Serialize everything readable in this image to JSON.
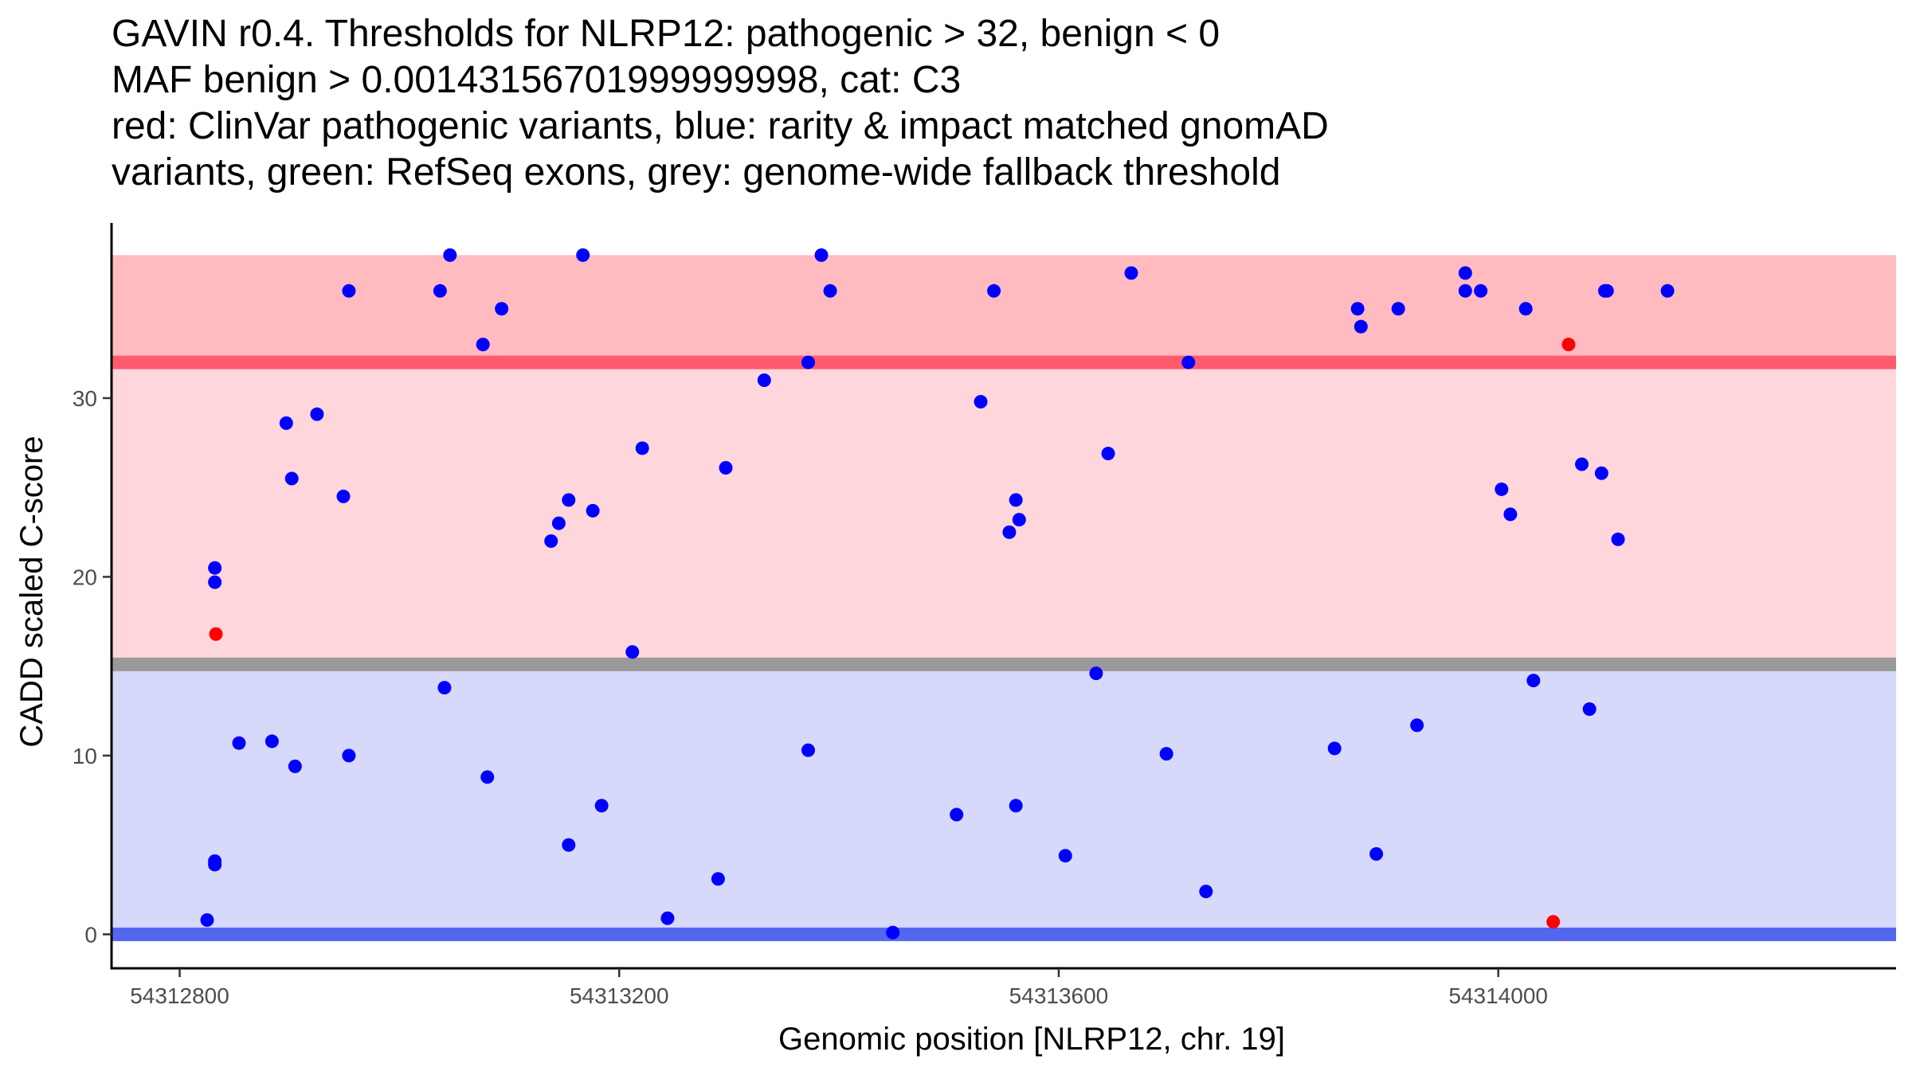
{
  "chart_data": {
    "type": "scatter",
    "title_lines": [
      "GAVIN r0.4. Thresholds for NLRP12: pathogenic > 32, benign < 0",
      "MAF benign > 0.00143156701999999998, cat: C3",
      "red: ClinVar pathogenic variants, blue: rarity & impact matched gnomAD",
      "variants, green: RefSeq exons, grey: genome-wide fallback threshold"
    ],
    "xlabel": "Genomic position [NLRP12, chr. 19]",
    "ylabel": "CADD scaled C-score",
    "xlim": [
      54312738,
      54314362
    ],
    "ylim": [
      -1.9,
      39.8
    ],
    "x_ticks": [
      54312800,
      54313200,
      54313600,
      54314000
    ],
    "x_tick_labels": [
      "54312800",
      "54313200",
      "54313600",
      "54314000"
    ],
    "y_ticks": [
      0,
      10,
      20,
      30
    ],
    "y_tick_labels": [
      "0",
      "10",
      "20",
      "30"
    ],
    "grid": false,
    "bands": [
      {
        "name": "pathogenic-band",
        "y0": 32,
        "y1": 38,
        "color": "#ffbbc0"
      },
      {
        "name": "mid-band",
        "y0": 15.1,
        "y1": 32,
        "color": "#ffd6dc"
      },
      {
        "name": "benign-band",
        "y0": 0,
        "y1": 15.1,
        "color": "#d7d9fa"
      }
    ],
    "threshold_lines": [
      {
        "name": "pathogenic-threshold-line",
        "y": 32,
        "color": "#ff5a6e"
      },
      {
        "name": "fallback-threshold-line",
        "y": 15.1,
        "color": "#999999"
      },
      {
        "name": "benign-threshold-line",
        "y": 0,
        "color": "#5266ee"
      }
    ],
    "series": [
      {
        "name": "gnomAD matched variants",
        "color": "#0000ff",
        "points": [
          [
            54312825,
            0.8
          ],
          [
            54312832,
            20.5
          ],
          [
            54312832,
            19.7
          ],
          [
            54312832,
            4.1
          ],
          [
            54312832,
            3.9
          ],
          [
            54312854,
            10.7
          ],
          [
            54312884,
            10.8
          ],
          [
            54312897,
            28.6
          ],
          [
            54312902,
            25.5
          ],
          [
            54312905,
            9.4
          ],
          [
            54312925,
            29.1
          ],
          [
            54312949,
            24.5
          ],
          [
            54312954,
            36
          ],
          [
            54312954,
            10
          ],
          [
            54313037,
            36
          ],
          [
            54313041,
            13.8
          ],
          [
            54313046,
            38
          ],
          [
            54313076,
            33
          ],
          [
            54313080,
            8.8
          ],
          [
            54313093,
            35
          ],
          [
            54313138,
            22
          ],
          [
            54313145,
            23
          ],
          [
            54313154,
            24.3
          ],
          [
            54313154,
            5
          ],
          [
            54313167,
            38
          ],
          [
            54313176,
            23.7
          ],
          [
            54313184,
            7.2
          ],
          [
            54313212,
            15.8
          ],
          [
            54313221,
            27.2
          ],
          [
            54313244,
            0.9
          ],
          [
            54313290,
            3.1
          ],
          [
            54313297,
            26.1
          ],
          [
            54313332,
            31
          ],
          [
            54313372,
            10.3
          ],
          [
            54313372,
            32
          ],
          [
            54313384,
            38
          ],
          [
            54313392,
            36
          ],
          [
            54313449,
            0.1
          ],
          [
            54313507,
            6.7
          ],
          [
            54313529,
            29.8
          ],
          [
            54313541,
            36
          ],
          [
            54313555,
            22.5
          ],
          [
            54313561,
            24.3
          ],
          [
            54313561,
            7.2
          ],
          [
            54313564,
            23.2
          ],
          [
            54313606,
            4.4
          ],
          [
            54313634,
            14.6
          ],
          [
            54313645,
            26.9
          ],
          [
            54313666,
            37
          ],
          [
            54313698,
            10.1
          ],
          [
            54313718,
            32
          ],
          [
            54313734,
            2.4
          ],
          [
            54313851,
            10.4
          ],
          [
            54313872,
            35
          ],
          [
            54313875,
            34
          ],
          [
            54313889,
            4.5
          ],
          [
            54313909,
            35
          ],
          [
            54313926,
            11.7
          ],
          [
            54313970,
            37
          ],
          [
            54313970,
            36
          ],
          [
            54313984,
            36
          ],
          [
            54314003,
            24.9
          ],
          [
            54314011,
            23.5
          ],
          [
            54314025,
            35
          ],
          [
            54314032,
            14.2
          ],
          [
            54314076,
            26.3
          ],
          [
            54314083,
            12.6
          ],
          [
            54314094,
            25.8
          ],
          [
            54314097,
            36
          ],
          [
            54314099,
            36
          ],
          [
            54314109,
            22.1
          ],
          [
            54314154,
            36
          ]
        ]
      },
      {
        "name": "ClinVar pathogenic variants",
        "color": "#ff0000",
        "points": [
          [
            54312833,
            16.8
          ],
          [
            54314050,
            0.7
          ],
          [
            54314064,
            33
          ]
        ]
      }
    ]
  }
}
